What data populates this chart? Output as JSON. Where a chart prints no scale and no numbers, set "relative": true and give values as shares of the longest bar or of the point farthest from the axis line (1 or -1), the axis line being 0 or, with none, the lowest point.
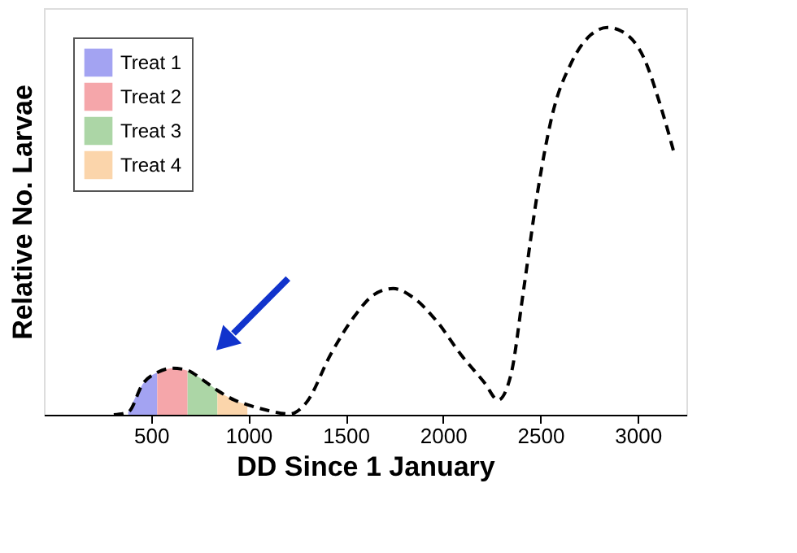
{
  "chart_data": {
    "type": "line",
    "xlabel": "DD Since 1 January",
    "ylabel": "Relative No. Larvae",
    "relative": true,
    "tick_labels": "x",
    "legend": "top left",
    "xlim": [
      -50,
      3250
    ],
    "xticks": [
      500,
      1000,
      1500,
      2000,
      2500,
      3000
    ],
    "grid": false,
    "series": [
      {
        "type": "area",
        "name": "Treat 1",
        "color": "#a3a3f2",
        "x": [
          383,
          420,
          458,
          495,
          532
        ],
        "values": [
          0.007,
          0.045,
          0.08,
          0.1,
          0.109
        ]
      },
      {
        "type": "area",
        "name": "Treat 2",
        "color": "#f5a6aa",
        "x": [
          532,
          570,
          606,
          645,
          688
        ],
        "values": [
          0.109,
          0.117,
          0.12,
          0.119,
          0.114
        ]
      },
      {
        "type": "area",
        "name": "Treat 3",
        "color": "#acd6a6",
        "x": [
          688,
          720,
          755,
          800,
          841
        ],
        "values": [
          0.114,
          0.105,
          0.094,
          0.078,
          0.063
        ]
      },
      {
        "type": "area",
        "name": "Treat 4",
        "color": "#fbd5ab",
        "x": [
          841,
          880,
          928,
          960,
          995
        ],
        "values": [
          0.063,
          0.05,
          0.038,
          0.031,
          0.026
        ]
      },
      {
        "type": "line",
        "color": "#000000",
        "line_style": "dashed",
        "x": [
          309,
          383,
          458,
          532,
          606,
          680,
          755,
          841,
          928,
          995,
          1101,
          1212,
          1299,
          1423,
          1546,
          1645,
          1744,
          1843,
          1967,
          2091,
          2214,
          2283,
          2350,
          2412,
          2486,
          2561,
          2660,
          2759,
          2845,
          2932,
          3031,
          3117,
          3184
        ],
        "values": [
          0,
          0.007,
          0.08,
          0.109,
          0.12,
          0.116,
          0.094,
          0.063,
          0.038,
          0.026,
          0.011,
          0.002,
          0.032,
          0.156,
          0.255,
          0.31,
          0.326,
          0.304,
          0.242,
          0.156,
          0.082,
          0.038,
          0.106,
          0.316,
          0.576,
          0.774,
          0.91,
          0.981,
          1.0,
          0.986,
          0.922,
          0.798,
          0.681
        ]
      }
    ]
  }
}
